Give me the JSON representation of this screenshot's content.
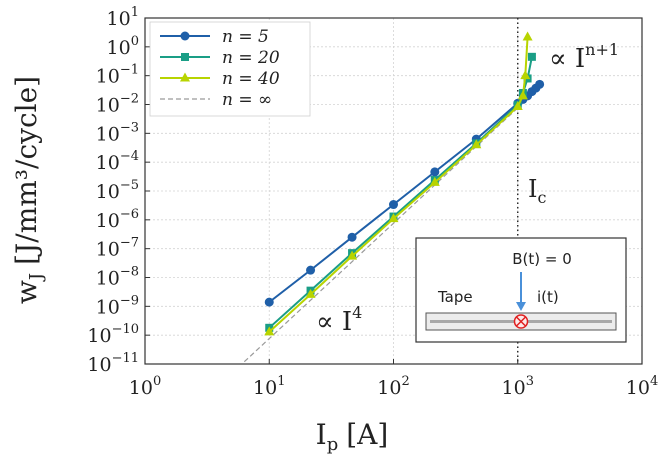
{
  "colors": {
    "n5": "#1f5fa8",
    "n20": "#1a9e86",
    "n40": "#b8d400",
    "ninf": "#9a9a9a",
    "arrow": "#4a90d9",
    "cross": "#e02020"
  },
  "chart_data": {
    "type": "line",
    "xlabel": "I",
    "xlabel_sub": "p",
    "xlabel_unit": "[A]",
    "ylabel": "w",
    "ylabel_sub": "J",
    "ylabel_unit": "[J/mm³/cycle]",
    "x_scale": "log",
    "y_scale": "log",
    "xlim": [
      1,
      10000
    ],
    "ylim": [
      1e-11,
      10
    ],
    "grid": true,
    "legend_position": "top-left",
    "x_ticks": [
      {
        "value": 1,
        "base": "10",
        "exp": "0"
      },
      {
        "value": 10,
        "base": "10",
        "exp": "1"
      },
      {
        "value": 100,
        "base": "10",
        "exp": "2"
      },
      {
        "value": 1000,
        "base": "10",
        "exp": "3"
      },
      {
        "value": 10000,
        "base": "10",
        "exp": "4"
      }
    ],
    "y_ticks": [
      {
        "value": 10,
        "base": "10",
        "exp": "1"
      },
      {
        "value": 1,
        "base": "10",
        "exp": "0"
      },
      {
        "value": 0.1,
        "base": "10",
        "exp": "−1"
      },
      {
        "value": 0.01,
        "base": "10",
        "exp": "−2"
      },
      {
        "value": 0.001,
        "base": "10",
        "exp": "−3"
      },
      {
        "value": 0.0001,
        "base": "10",
        "exp": "−4"
      },
      {
        "value": 1e-05,
        "base": "10",
        "exp": "−5"
      },
      {
        "value": 1e-06,
        "base": "10",
        "exp": "−6"
      },
      {
        "value": 1e-07,
        "base": "10",
        "exp": "−7"
      },
      {
        "value": 1e-08,
        "base": "10",
        "exp": "−8"
      },
      {
        "value": 1e-09,
        "base": "10",
        "exp": "−9"
      },
      {
        "value": 1e-10,
        "base": "10",
        "exp": "−10"
      },
      {
        "value": 1e-11,
        "base": "10",
        "exp": "−11"
      }
    ],
    "series": [
      {
        "name": "n = 5",
        "marker": "circle",
        "color_key": "n5",
        "x": [
          10,
          21.5,
          46.4,
          100,
          215,
          464,
          1000,
          1100,
          1200,
          1300,
          1400,
          1500
        ],
        "y": [
          1.4e-09,
          1.8e-08,
          2.5e-07,
          3.4e-06,
          4.6e-05,
          0.00063,
          0.011,
          0.015,
          0.02,
          0.028,
          0.037,
          0.05
        ]
      },
      {
        "name": "n = 20",
        "marker": "square",
        "color_key": "n20",
        "x": [
          10,
          21.5,
          46.4,
          100,
          215,
          464,
          1000,
          1100,
          1200,
          1300
        ],
        "y": [
          1.8e-10,
          3.5e-09,
          7e-08,
          1.3e-06,
          2.4e-05,
          0.00045,
          0.0095,
          0.025,
          0.08,
          0.45
        ]
      },
      {
        "name": "n = 40",
        "marker": "triangle",
        "color_key": "n40",
        "x": [
          10,
          21.5,
          46.4,
          100,
          215,
          464,
          1000,
          1100,
          1150,
          1200
        ],
        "y": [
          1.3e-10,
          2.6e-09,
          5.5e-08,
          1.1e-06,
          2e-05,
          0.0004,
          0.0085,
          0.02,
          0.1,
          2.2
        ]
      },
      {
        "name": "n = ∞",
        "marker": "none",
        "dashed": true,
        "color_key": "ninf",
        "x": [
          6.3,
          1000
        ],
        "y": [
          1.2e-11,
          0.0076
        ]
      }
    ],
    "ic_x": 1000,
    "annotations": {
      "ic_label": "I",
      "ic_sub": "c",
      "power_high": "∝ I",
      "power_high_exp": "n+1",
      "power_low": "∝ I",
      "power_low_exp": "4"
    },
    "inset": {
      "field_label": "B(t) = 0",
      "tape_label": "Tape",
      "current_label": "i(t)"
    }
  }
}
